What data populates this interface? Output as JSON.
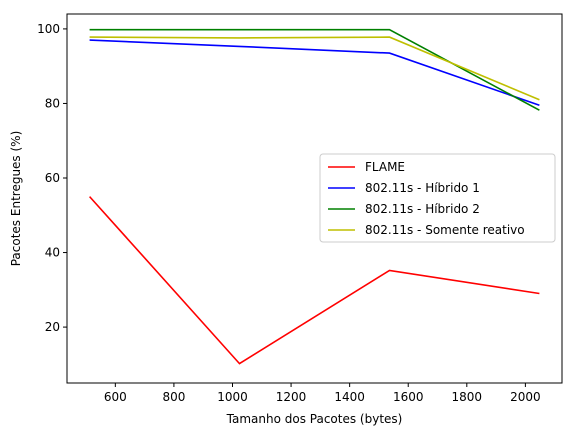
{
  "chart_data": {
    "type": "line",
    "title": "",
    "xlabel": "Tamanho dos Pacotes (bytes)",
    "ylabel": "Pacotes Entregues (%)",
    "xlim": [
      435,
      2125
    ],
    "ylim": [
      5,
      104
    ],
    "xticks": [
      600,
      800,
      1000,
      1200,
      1400,
      1600,
      1800,
      2000
    ],
    "yticks": [
      20,
      40,
      60,
      80,
      100
    ],
    "grid": false,
    "legend_position": "center-right",
    "x": [
      512,
      1024,
      1536,
      2048
    ],
    "series": [
      {
        "name": "FLAME",
        "color": "#ff0000",
        "values": [
          55.0,
          10.2,
          35.2,
          29.0
        ]
      },
      {
        "name": "802.11s - Híbrido 1",
        "color": "#0000ff",
        "values": [
          97.0,
          95.3,
          93.5,
          79.5
        ]
      },
      {
        "name": "802.11s - Híbrido 2",
        "color": "#008000",
        "values": [
          99.8,
          99.8,
          99.8,
          78.2
        ]
      },
      {
        "name": "802.11s - Somente reativo",
        "color": "#bfbf00",
        "values": [
          97.8,
          97.6,
          97.8,
          81.0
        ]
      }
    ]
  }
}
